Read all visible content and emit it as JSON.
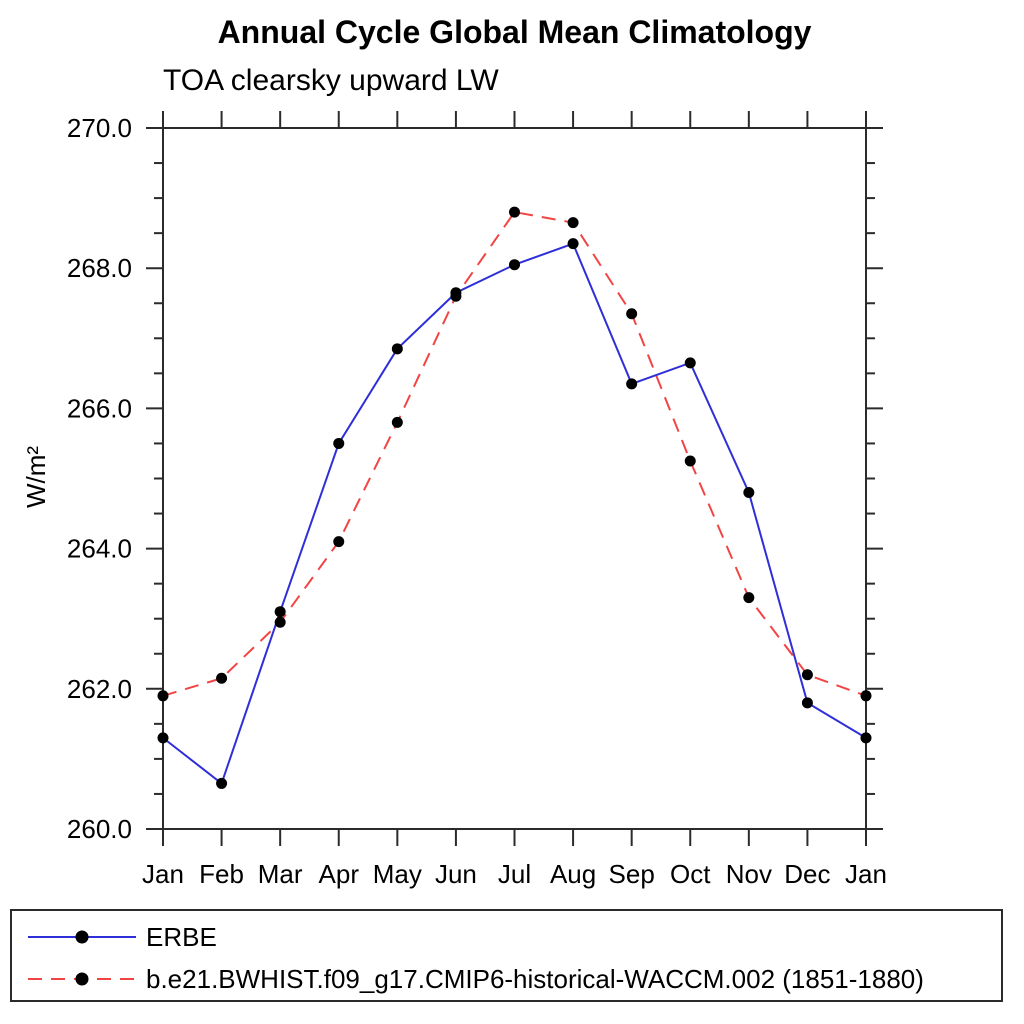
{
  "chart_data": {
    "type": "line",
    "title": "Annual Cycle Global Mean Climatology",
    "subtitle": "TOA clearsky upward LW",
    "ylabel": "W/m²",
    "x_categories": [
      "Jan",
      "Feb",
      "Mar",
      "Apr",
      "May",
      "Jun",
      "Jul",
      "Aug",
      "Sep",
      "Oct",
      "Nov",
      "Dec",
      "Jan"
    ],
    "ylim": [
      260.0,
      270.0
    ],
    "y_major_ticks": [
      260.0,
      262.0,
      264.0,
      266.0,
      268.0,
      270.0
    ],
    "y_minor_step": 0.5,
    "y_tick_decimals": 1,
    "grid": "off",
    "legend_position": "bottom",
    "marker_color": "#000000",
    "axis_color": "#2b2b2b",
    "series": [
      {
        "key": "erbe",
        "name": "ERBE",
        "color": "#2f2fd9",
        "style": "solid",
        "marker": "circle",
        "values": [
          261.3,
          260.65,
          263.1,
          265.5,
          266.85,
          267.65,
          268.05,
          268.35,
          266.35,
          266.65,
          264.8,
          261.8,
          261.3
        ]
      },
      {
        "key": "model",
        "name": "b.e21.BWHIST.f09_g17.CMIP6-historical-WACCM.002 (1851-1880)",
        "color": "#f34444",
        "style": "dashed",
        "marker": "circle",
        "values": [
          261.9,
          262.15,
          262.95,
          264.1,
          265.8,
          267.6,
          268.8,
          268.65,
          267.35,
          265.25,
          263.3,
          262.2,
          261.9
        ]
      }
    ]
  }
}
